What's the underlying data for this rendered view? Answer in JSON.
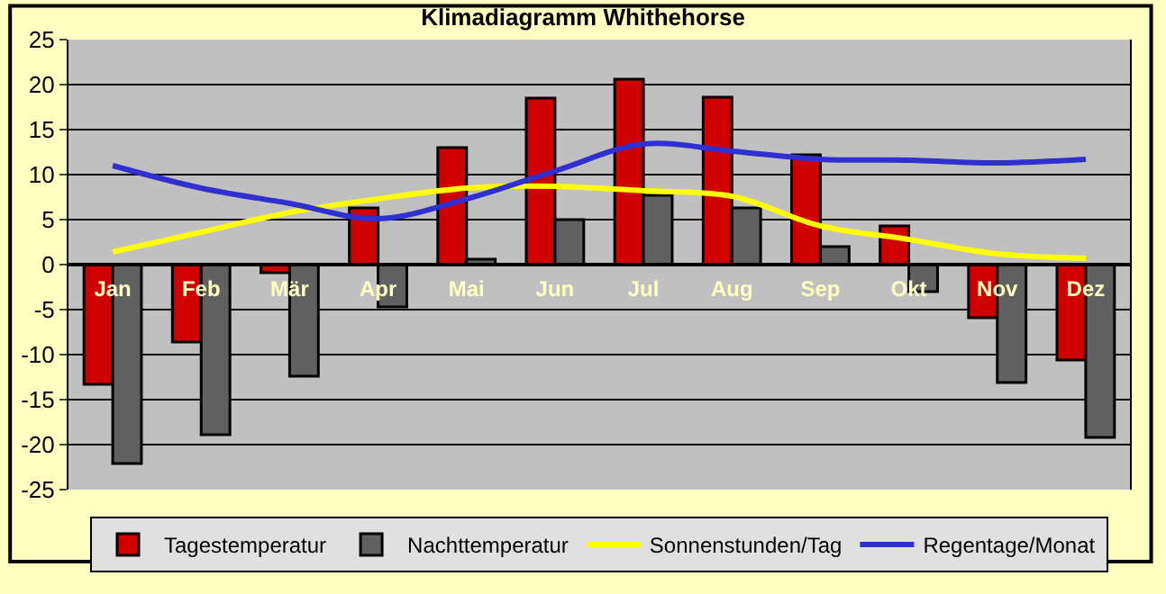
{
  "chart_data": {
    "type": "bar",
    "title": "Klimadiagramm Whithehorse",
    "categories": [
      "Jan",
      "Feb",
      "Mär",
      "Apr",
      "Mai",
      "Jun",
      "Jul",
      "Aug",
      "Sep",
      "Okt",
      "Nov",
      "Dez"
    ],
    "series": [
      {
        "name": "Tagestemperatur",
        "color": "#d00000",
        "values": [
          -13.3,
          -8.6,
          -0.9,
          6.3,
          13,
          18.5,
          20.6,
          18.6,
          12.2,
          4.3,
          -5.9,
          -10.6
        ]
      },
      {
        "name": "Nachttemperatur",
        "color": "#606060",
        "values": [
          -22.1,
          -18.9,
          -12.4,
          -4.7,
          0.6,
          5,
          7.7,
          6.3,
          2,
          -3,
          -13.1,
          -19.2
        ]
      },
      {
        "name": "Sonnenstunden/Tag",
        "type": "line",
        "color": "#ffff00",
        "values": [
          1.4,
          3.6,
          5.8,
          7.3,
          8.5,
          8.7,
          8.2,
          7.6,
          4.3,
          2.8,
          1.2,
          0.7
        ]
      },
      {
        "name": "Regentage/Monat",
        "type": "line",
        "color": "#3030d0",
        "values": [
          11,
          8.5,
          6.8,
          5.1,
          7.3,
          10.4,
          13.4,
          12.6,
          11.7,
          11.6,
          11.3,
          11.7
        ]
      }
    ],
    "ylim": [
      -25,
      25
    ],
    "yticks": [
      -25,
      -20,
      -15,
      -10,
      -5,
      0,
      5,
      10,
      15,
      20,
      25
    ],
    "grid": "y",
    "legend": "bottom",
    "marker": "none",
    "line_style": "solid"
  }
}
